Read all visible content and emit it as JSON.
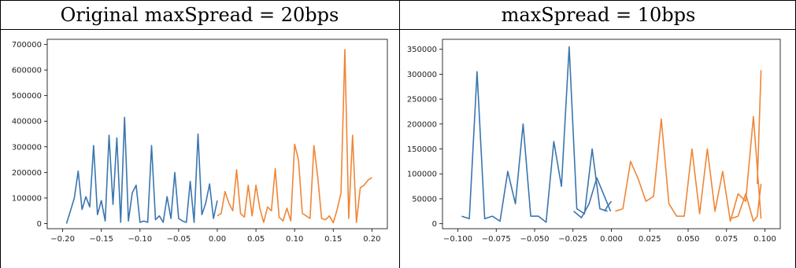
{
  "table": {
    "header_left": "Original maxSpread = 20bps",
    "header_right": "maxSpread = 10bps"
  },
  "chart_data": [
    {
      "type": "line",
      "xlim": [
        -0.22,
        0.22
      ],
      "ylim": [
        -20000,
        720000
      ],
      "xticks": [
        -0.2,
        -0.15,
        -0.1,
        -0.05,
        0.0,
        0.05,
        0.1,
        0.15,
        0.2
      ],
      "xtick_labels": [
        "−0.20",
        "−0.15",
        "−0.10",
        "−0.05",
        "0.00",
        "0.05",
        "0.10",
        "0.15",
        "0.20"
      ],
      "yticks": [
        0,
        100000,
        200000,
        300000,
        400000,
        500000,
        600000,
        700000
      ],
      "ytick_labels": [
        "0",
        "100000",
        "200000",
        "300000",
        "400000",
        "500000",
        "600000",
        "700000"
      ],
      "grid": false,
      "series": [
        {
          "color": "#3a75b0",
          "x": [
            -0.195,
            -0.19,
            -0.185,
            -0.18,
            -0.175,
            -0.17,
            -0.165,
            -0.16,
            -0.155,
            -0.15,
            -0.145,
            -0.14,
            -0.135,
            -0.13,
            -0.125,
            -0.12,
            -0.115,
            -0.11,
            -0.105,
            -0.1,
            -0.095,
            -0.09,
            -0.085,
            -0.08,
            -0.075,
            -0.07,
            -0.065,
            -0.06,
            -0.055,
            -0.05,
            -0.045,
            -0.04,
            -0.035,
            -0.03,
            -0.025,
            -0.02,
            -0.015,
            -0.01,
            -0.005,
            0.0
          ],
          "y": [
            0,
            50000,
            100000,
            205000,
            55000,
            105000,
            65000,
            305000,
            35000,
            90000,
            10000,
            345000,
            75000,
            335000,
            5000,
            415000,
            10000,
            120000,
            150000,
            5000,
            10000,
            5000,
            305000,
            15000,
            30000,
            5000,
            105000,
            20000,
            200000,
            20000,
            10000,
            5000,
            165000,
            5000,
            350000,
            35000,
            80000,
            155000,
            20000,
            90000
          ]
        },
        {
          "color": "#ef8636",
          "x": [
            0.0,
            0.005,
            0.01,
            0.015,
            0.02,
            0.025,
            0.03,
            0.035,
            0.04,
            0.045,
            0.05,
            0.055,
            0.06,
            0.065,
            0.07,
            0.075,
            0.08,
            0.085,
            0.09,
            0.095,
            0.1,
            0.105,
            0.11,
            0.115,
            0.12,
            0.125,
            0.13,
            0.135,
            0.14,
            0.145,
            0.15,
            0.155,
            0.16,
            0.165,
            0.17,
            0.175,
            0.18,
            0.185,
            0.19,
            0.195,
            0.2
          ],
          "y": [
            30000,
            40000,
            125000,
            80000,
            50000,
            210000,
            40000,
            25000,
            150000,
            30000,
            150000,
            60000,
            5000,
            65000,
            50000,
            215000,
            25000,
            10000,
            60000,
            10000,
            310000,
            250000,
            40000,
            30000,
            20000,
            305000,
            180000,
            20000,
            15000,
            30000,
            3000,
            55000,
            120000,
            680000,
            20000,
            345000,
            5000,
            140000,
            150000,
            170000,
            180000
          ]
        }
      ]
    },
    {
      "type": "line",
      "xlim": [
        -0.11,
        0.11
      ],
      "ylim": [
        -10000,
        370000
      ],
      "xticks": [
        -0.1,
        -0.075,
        -0.05,
        -0.025,
        0.0,
        0.025,
        0.05,
        0.075,
        0.1
      ],
      "xtick_labels": [
        "−0.100",
        "−0.075",
        "−0.050",
        "−0.025",
        "0.000",
        "0.025",
        "0.050",
        "0.075",
        "0.100"
      ],
      "yticks": [
        0,
        50000,
        100000,
        150000,
        200000,
        250000,
        300000,
        350000
      ],
      "ytick_labels": [
        "0",
        "50000",
        "100000",
        "150000",
        "200000",
        "250000",
        "300000",
        "350000"
      ],
      "grid": false,
      "series": [
        {
          "color": "#3a75b0",
          "x": [
            -0.0975,
            -0.0925,
            -0.0875,
            -0.0825,
            -0.0775,
            -0.0725,
            -0.0675,
            -0.0625,
            -0.0575,
            -0.0525,
            -0.0475,
            -0.0425,
            -0.0375,
            -0.0325,
            -0.0275,
            -0.0225,
            -0.0175,
            -0.0125,
            -0.0075,
            -0.0025
          ],
          "y": [
            15000,
            10000,
            305000,
            10000,
            15000,
            5000,
            105000,
            40000,
            200000,
            15000,
            15000,
            3000,
            165000,
            75000,
            355000,
            30000,
            20000,
            150000,
            30000,
            25000
          ]
        },
        {
          "color": "#3a75b0",
          "x": [
            -0.0245,
            -0.0195,
            -0.0145,
            -0.0095,
            -0.0045,
            -0.0005
          ],
          "y": [
            25000,
            12000,
            40000,
            92000,
            55000,
            25000
          ]
        },
        {
          "color": "#3a75b0",
          "x": [
            -0.0045,
            -0.0025,
            0.0
          ],
          "y": [
            25000,
            35000,
            45000
          ]
        },
        {
          "color": "#ef8636",
          "x": [
            0.0025,
            0.0075,
            0.0125,
            0.0175,
            0.0225,
            0.0275,
            0.0325,
            0.0375,
            0.0425,
            0.0475,
            0.0525,
            0.0575,
            0.0625,
            0.0675,
            0.0725,
            0.0775,
            0.0825,
            0.0875,
            0.0925,
            0.0975
          ],
          "y": [
            25000,
            30000,
            125000,
            90000,
            45000,
            55000,
            210000,
            40000,
            15000,
            15000,
            150000,
            20000,
            150000,
            25000,
            105000,
            5000,
            60000,
            45000,
            215000,
            10000
          ]
        },
        {
          "color": "#ef8636",
          "x": [
            0.0775,
            0.0825,
            0.0875,
            0.0925,
            0.095,
            0.0975
          ],
          "y": [
            10000,
            15000,
            60000,
            5000,
            15000,
            80000
          ]
        },
        {
          "color": "#ef8636",
          "x": [
            0.095,
            0.0975
          ],
          "y": [
            80000,
            308000
          ]
        }
      ]
    }
  ]
}
